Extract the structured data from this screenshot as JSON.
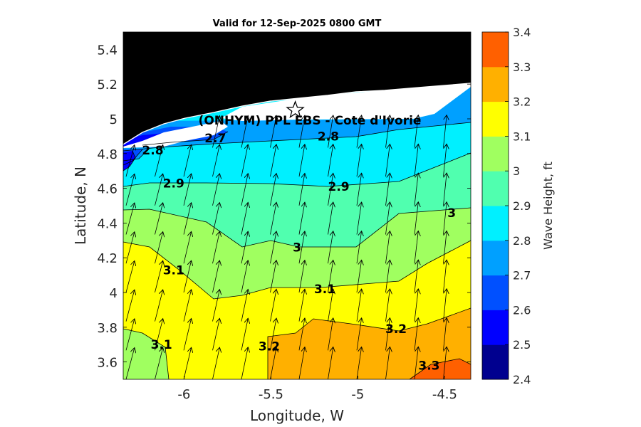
{
  "chart_data": {
    "type": "heatmap",
    "title": "Valid for 12-Sep-2025 0800 GMT",
    "xlabel": "Longitude, W",
    "ylabel": "Latitude, N",
    "xlim": [
      -6.35,
      -4.35
    ],
    "ylim": [
      3.5,
      5.5
    ],
    "xticks": [
      -6,
      -5.5,
      -5,
      -4.5
    ],
    "xtick_labels": [
      "-6",
      "-5.5",
      "-5",
      "-4.5"
    ],
    "yticks": [
      3.6,
      3.8,
      4.0,
      4.2,
      4.4,
      4.6,
      4.8,
      5.0,
      5.2,
      5.4
    ],
    "ytick_labels": [
      "3.6",
      "3.8",
      "4",
      "4.2",
      "4.4",
      "4.6",
      "4.8",
      "5",
      "5.2",
      "5.4"
    ],
    "site_label": "(ONHYM) PPL EBS  - Cote d'Ivorie",
    "site_marker": {
      "lon": -5.36,
      "lat": 5.05
    },
    "colorbar": {
      "label": "Wave Height, ft",
      "levels": [
        2.4,
        2.5,
        2.6,
        2.7,
        2.8,
        2.9,
        3.0,
        3.1,
        3.2,
        3.3,
        3.4
      ],
      "tick_labels": [
        "2.4",
        "2.5",
        "2.6",
        "2.7",
        "2.8",
        "2.9",
        "3",
        "3.1",
        "3.2",
        "3.3",
        "3.4"
      ],
      "colors": [
        "#00008f",
        "#0000ff",
        "#0050ff",
        "#00a0ff",
        "#00f0ff",
        "#50ffaf",
        "#a0ff60",
        "#ffff00",
        "#ffb000",
        "#ff6000"
      ]
    },
    "land_color": "#000000",
    "coast_color": "#ffffff",
    "contour_labels": [
      {
        "text": "2.7",
        "lon": -5.82,
        "lat": 4.89
      },
      {
        "text": "2.8",
        "lon": -5.17,
        "lat": 4.9
      },
      {
        "text": "2.8",
        "lon": -6.18,
        "lat": 4.82
      },
      {
        "text": "2.9",
        "lon": -6.06,
        "lat": 4.63
      },
      {
        "text": "2.9",
        "lon": -5.11,
        "lat": 4.61
      },
      {
        "text": "3",
        "lon": -4.46,
        "lat": 4.46
      },
      {
        "text": "3",
        "lon": -5.35,
        "lat": 4.26
      },
      {
        "text": "3.1",
        "lon": -6.06,
        "lat": 4.13
      },
      {
        "text": "3.1",
        "lon": -5.19,
        "lat": 4.02
      },
      {
        "text": "3.2",
        "lon": -4.78,
        "lat": 3.79
      },
      {
        "text": "3.2",
        "lon": -5.51,
        "lat": 3.69
      },
      {
        "text": "3.1",
        "lon": -6.13,
        "lat": 3.7
      },
      {
        "text": "3.3",
        "lon": -4.59,
        "lat": 3.58
      }
    ]
  }
}
